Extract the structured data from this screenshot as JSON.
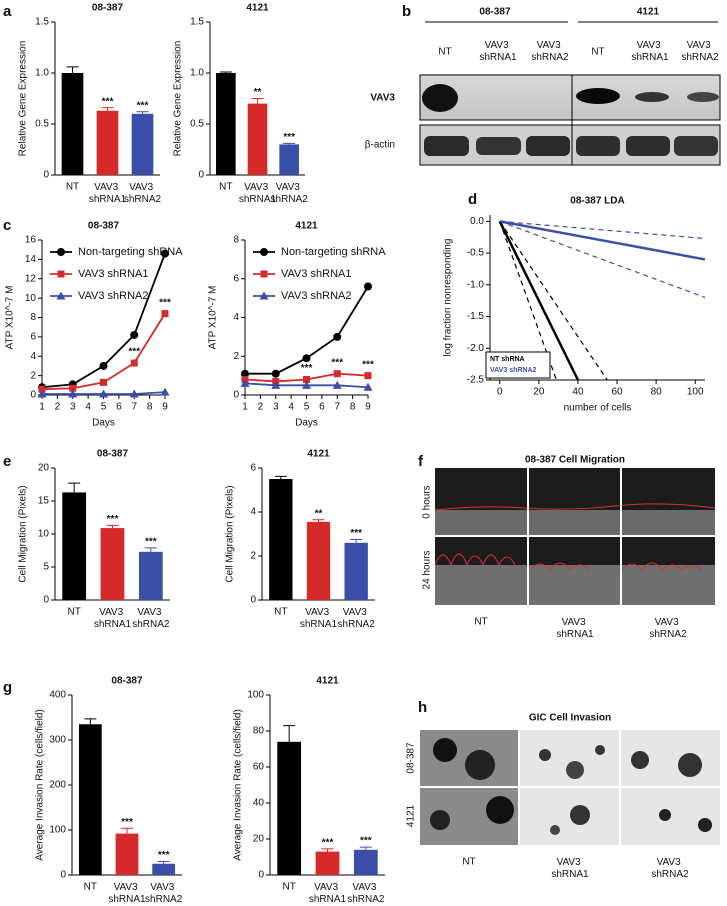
{
  "panel_labels": [
    "a",
    "b",
    "c",
    "d",
    "e",
    "f",
    "g",
    "h"
  ],
  "blot": {
    "cell_lines": [
      "08-387",
      "4121"
    ],
    "lanes": [
      "NT",
      "VAV3 shRNA1",
      "VAV3 shRNA2",
      "NT",
      "VAV3 shRNA1",
      "VAV3 shRNA2"
    ],
    "rows": [
      "VAV3",
      "β-actin"
    ]
  },
  "migration": {
    "title": "08-387 Cell Migration",
    "rows": [
      "0 hours",
      "24 hours"
    ],
    "columns": [
      "NT",
      "VAV3 shRNA1",
      "VAV3 shRNA2"
    ]
  },
  "invasion": {
    "title": "GIC Cell Invasion",
    "rows": [
      "08-387",
      "4121"
    ],
    "columns": [
      "NT",
      "VAV3 shRNA1",
      "VAV3 shRNA2"
    ]
  },
  "chart_data": [
    {
      "type": "bar",
      "title": "08-387",
      "y_label": "Relative Gene Expression",
      "categories": [
        "NT",
        "VAV3 shRNA1",
        "VAV3 shRNA2"
      ],
      "values": [
        1.0,
        0.63,
        0.6
      ],
      "errors": [
        0.06,
        0.03,
        0.02
      ],
      "colors": [
        "#000000",
        "#d42a2a",
        "#3b4fa8"
      ],
      "significance": [
        null,
        "***",
        "***"
      ],
      "ylim": [
        0,
        1.5
      ],
      "yticks": [
        0,
        0.5,
        {
          "value": 1,
          "label": "1.0"
        },
        1.5
      ]
    },
    {
      "type": "bar",
      "title": "4121",
      "y_label": "Relative Gene Expression",
      "categories": [
        "NT",
        "VAV3 shRNA1",
        "VAV3 shRNA2"
      ],
      "values": [
        1.0,
        0.7,
        0.3
      ],
      "errors": [
        0.01,
        0.05,
        0.01
      ],
      "colors": [
        "#000000",
        "#d42a2a",
        "#3b4fa8"
      ],
      "significance": [
        null,
        "**",
        "***"
      ],
      "ylim": [
        0,
        1.5
      ],
      "yticks": [
        0,
        0.5,
        {
          "value": 1,
          "label": "1.0"
        },
        1.5
      ]
    },
    {
      "type": "line",
      "title": "08-387",
      "x_label": "Days",
      "y_label": "ATP X10^-7 M",
      "x": [
        1,
        3,
        5,
        7,
        9
      ],
      "xlim": [
        1,
        9
      ],
      "xticks": [
        1,
        2,
        3,
        4,
        5,
        6,
        7,
        8,
        9
      ],
      "ylim": [
        0,
        16
      ],
      "yticks": [
        0,
        2,
        4,
        6,
        8,
        10,
        12,
        14,
        16
      ],
      "legend": "upper left",
      "series": [
        {
          "name": "Non-targeting shRNA",
          "color": "#000000",
          "marker": "circle",
          "values": [
            0.8,
            1.1,
            3.0,
            6.2,
            14.6
          ]
        },
        {
          "name": "VAV3 shRNA1",
          "color": "#d42a2a",
          "marker": "square",
          "values": [
            0.6,
            0.7,
            1.3,
            3.3,
            8.4
          ],
          "significance": [
            null,
            null,
            null,
            "***",
            "***"
          ]
        },
        {
          "name": "VAV3 shRNA2",
          "color": "#3b4fa8",
          "marker": "triangle",
          "values": [
            0.1,
            0.1,
            0.1,
            0.1,
            0.3
          ]
        }
      ]
    },
    {
      "type": "line",
      "title": "4121",
      "x_label": "Days",
      "y_label": "ATP X10^-7 M",
      "x": [
        1,
        3,
        5,
        7,
        9
      ],
      "xlim": [
        1,
        9
      ],
      "xticks": [
        1,
        2,
        3,
        4,
        5,
        6,
        7,
        8,
        9
      ],
      "ylim": [
        0,
        8
      ],
      "yticks": [
        0,
        2,
        4,
        6,
        8
      ],
      "legend": "upper left",
      "series": [
        {
          "name": "Non-targeting shRNA",
          "color": "#000000",
          "marker": "circle",
          "values": [
            1.1,
            1.1,
            1.9,
            3.0,
            5.6
          ]
        },
        {
          "name": "VAV3 shRNA1",
          "color": "#d42a2a",
          "marker": "square",
          "values": [
            0.8,
            0.7,
            0.8,
            1.1,
            1.0
          ],
          "significance": [
            null,
            null,
            "***",
            "***",
            "***"
          ]
        },
        {
          "name": "VAV3 shRNA2",
          "color": "#3b4fa8",
          "marker": "triangle",
          "values": [
            0.6,
            0.5,
            0.5,
            0.5,
            0.4
          ]
        }
      ]
    },
    {
      "type": "line",
      "title": "08-387 LDA",
      "x_label": "number of cells",
      "y_label": "log fraction nonresponding",
      "xlim": [
        -5,
        105
      ],
      "xticks": [
        0,
        20,
        40,
        60,
        80,
        100
      ],
      "ylim": [
        -2.5,
        0.1
      ],
      "yticks": [
        {
          "value": 0,
          "label": "0.0"
        },
        -0.5,
        {
          "value": -1,
          "label": "-1.0"
        },
        -1.5,
        {
          "value": -2,
          "label": "-2.0"
        },
        -2.5
      ],
      "legend": "lower left",
      "series": [
        {
          "name": "NT shRNA",
          "color": "#000000",
          "x": [
            0,
            40
          ],
          "values": [
            0,
            -2.5
          ]
        },
        {
          "name": "VAV3 shRNA2",
          "color": "#3b4fa8",
          "x": [
            0,
            105
          ],
          "values": [
            0,
            -0.6
          ]
        },
        {
          "color": "#000000",
          "dashed": true,
          "x": [
            0,
            29
          ],
          "values": [
            0,
            -2.5
          ]
        },
        {
          "color": "#000000",
          "dashed": true,
          "x": [
            0,
            55
          ],
          "values": [
            0,
            -2.5
          ]
        },
        {
          "color": "#3b4fa8",
          "dashed": true,
          "x": [
            0,
            105
          ],
          "values": [
            0,
            -0.27
          ]
        },
        {
          "color": "#3b4fa8",
          "dashed": true,
          "x": [
            0,
            105
          ],
          "values": [
            0,
            -1.2
          ]
        }
      ]
    },
    {
      "type": "bar",
      "title": "08-387",
      "y_label": "Cell Migration (Pixels)",
      "categories": [
        "NT",
        "VAV3 shRNA1",
        "VAV3 shRNA2"
      ],
      "values": [
        16.3,
        10.9,
        7.3
      ],
      "errors": [
        1.4,
        0.4,
        0.6
      ],
      "colors": [
        "#000000",
        "#d42a2a",
        "#3b4fa8"
      ],
      "significance": [
        null,
        "***",
        "***"
      ],
      "ylim": [
        0,
        20
      ],
      "yticks": [
        0,
        5,
        10,
        15,
        20
      ]
    },
    {
      "type": "bar",
      "title": "4121",
      "y_label": "Cell Migration (Pixels)",
      "categories": [
        "NT",
        "VAV3 shRNA1",
        "VAV3 shRNA2"
      ],
      "values": [
        5.5,
        3.55,
        2.6
      ],
      "errors": [
        0.12,
        0.1,
        0.15
      ],
      "colors": [
        "#000000",
        "#d42a2a",
        "#3b4fa8"
      ],
      "significance": [
        null,
        "**",
        "***"
      ],
      "ylim": [
        0,
        6
      ],
      "yticks": [
        0,
        2,
        4,
        6
      ]
    },
    {
      "type": "bar",
      "title": "08-387",
      "y_label": "Average Invasion Rate (cells/field)",
      "categories": [
        "NT",
        "VAV3 shRNA1",
        "VAV3 shRNA2"
      ],
      "values": [
        335,
        92,
        25
      ],
      "errors": [
        12,
        12,
        5
      ],
      "colors": [
        "#000000",
        "#d42a2a",
        "#3b4fa8"
      ],
      "significance": [
        null,
        "***",
        "***"
      ],
      "ylim": [
        0,
        400
      ],
      "yticks": [
        0,
        100,
        200,
        300,
        400
      ]
    },
    {
      "type": "bar",
      "title": "4121",
      "y_label": "Average Invasion Rate (cells/field)",
      "categories": [
        "NT",
        "VAV3 shRNA1",
        "VAV3 shRNA2"
      ],
      "values": [
        74,
        13,
        14
      ],
      "errors": [
        9,
        1.5,
        1.5
      ],
      "colors": [
        "#000000",
        "#d42a2a",
        "#3b4fa8"
      ],
      "significance": [
        null,
        "***",
        "***"
      ],
      "ylim": [
        0,
        100
      ],
      "yticks": [
        0,
        20,
        40,
        60,
        80,
        100
      ]
    }
  ]
}
